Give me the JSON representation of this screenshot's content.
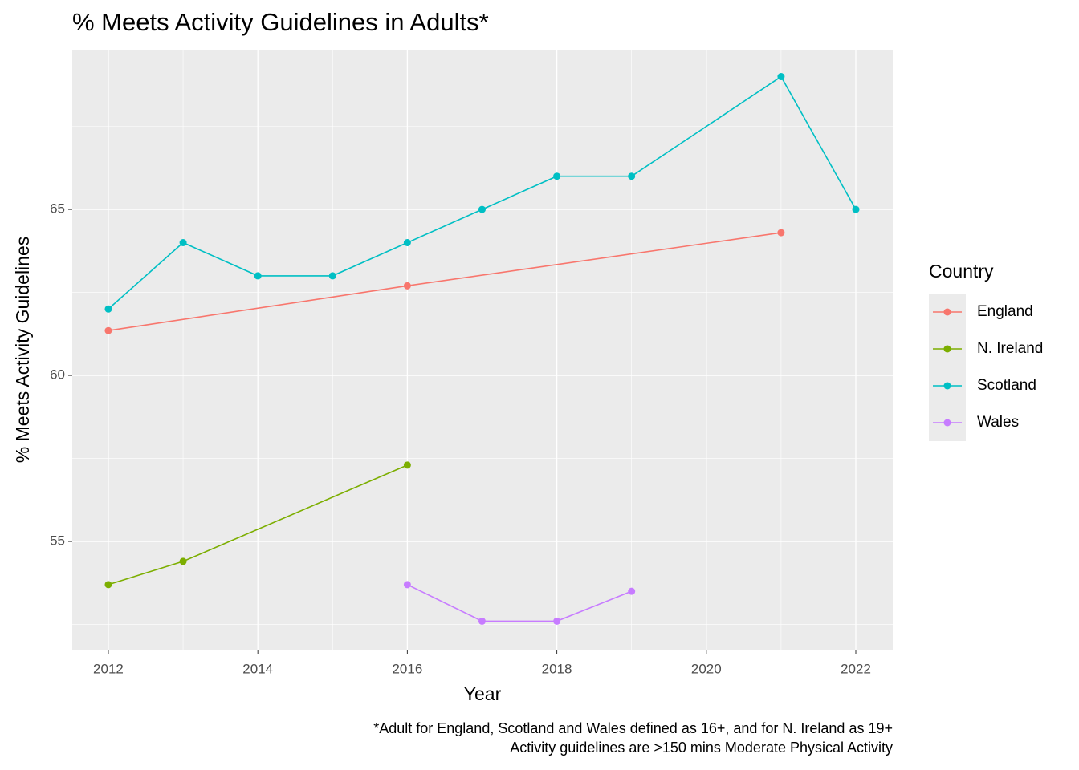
{
  "chart_data": {
    "type": "line",
    "title": "% Meets Activity Guidelines in Adults*",
    "xlabel": "Year",
    "ylabel": "% Meets Activity Guidelines",
    "caption": [
      "*Adult for England, Scotland and Wales defined as 16+, and for N. Ireland as 19+",
      "Activity guidelines are >150 mins Moderate Physical Activity"
    ],
    "legend_title": "Country",
    "legend_position": "right",
    "grid": true,
    "xlim": [
      2011.517,
      2022.494
    ],
    "ylim": [
      51.74,
      69.81
    ],
    "xticks": [
      2012,
      2014,
      2016,
      2018,
      2020,
      2022
    ],
    "yticks": [
      55,
      60,
      65
    ],
    "minor_xticks": [
      2013,
      2015,
      2017,
      2019,
      2021
    ],
    "minor_yticks": [
      52.5,
      57.5,
      62.5,
      67.5
    ],
    "series": [
      {
        "name": "England",
        "color": "#f8766d",
        "x": [
          2012,
          2016,
          2021
        ],
        "values": [
          61.35,
          62.7,
          64.3
        ]
      },
      {
        "name": "N. Ireland",
        "color": "#7cae00",
        "x": [
          2012,
          2013,
          2016
        ],
        "values": [
          53.7,
          54.4,
          57.3
        ]
      },
      {
        "name": "Scotland",
        "color": "#00bfc4",
        "x": [
          2012,
          2013,
          2014,
          2015,
          2016,
          2017,
          2018,
          2019,
          2021,
          2022
        ],
        "values": [
          62,
          64,
          63,
          63,
          64,
          65,
          66,
          66,
          69,
          65
        ]
      },
      {
        "name": "Wales",
        "color": "#c77cff",
        "x": [
          2016,
          2017,
          2018,
          2019
        ],
        "values": [
          53.7,
          52.6,
          52.6,
          53.5
        ]
      }
    ]
  }
}
